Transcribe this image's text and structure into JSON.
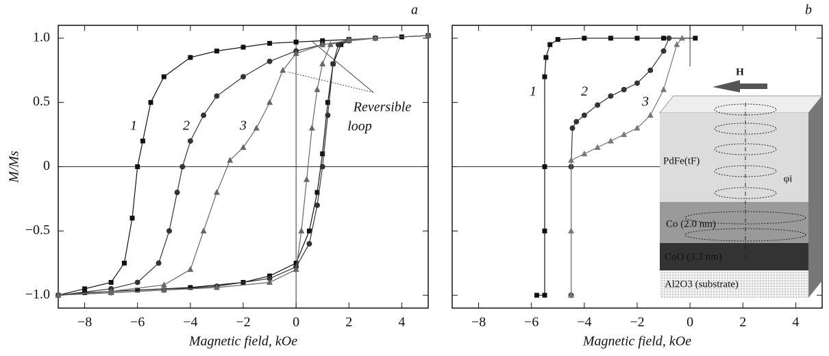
{
  "chart_data": [
    {
      "type": "line",
      "panel_label": "a",
      "x_label": "Magnetic field, kOe",
      "y_label": "M/Ms",
      "xlim": [
        -9,
        5
      ],
      "ylim": [
        -1.1,
        1.1
      ],
      "xticks": [
        {
          "value": -8,
          "label": "−8"
        },
        {
          "value": -6,
          "label": "−6"
        },
        {
          "value": -4,
          "label": "−4"
        },
        {
          "value": -2,
          "label": "−2"
        },
        0,
        2,
        4
      ],
      "yticks": [
        {
          "value": -1,
          "label": "−1.0"
        },
        {
          "value": -0.5,
          "label": "−0.5"
        },
        0,
        0.5,
        {
          "value": 1,
          "label": "1.0"
        }
      ],
      "zero_lines": true,
      "curve_labels": [
        "1",
        "2",
        "3"
      ],
      "annotation": [
        "Reversible",
        "loop"
      ],
      "series": [
        {
          "name": "1",
          "color": "#111111",
          "marker": "square",
          "x": [
            5,
            4,
            3,
            2,
            1,
            0,
            -1,
            -2,
            -3,
            -4,
            -5,
            -5.5,
            -5.8,
            -6,
            -6.2,
            -6.5,
            -7,
            -8,
            -9,
            -8,
            -6,
            -4,
            -2,
            -1,
            0,
            0.5,
            0.8,
            1,
            1.2,
            1.4,
            1.7,
            2,
            3,
            5
          ],
          "y": [
            1.02,
            1.01,
            1.0,
            0.99,
            0.98,
            0.97,
            0.96,
            0.93,
            0.9,
            0.85,
            0.7,
            0.5,
            0.2,
            0,
            -0.4,
            -0.75,
            -0.9,
            -0.95,
            -1.0,
            -0.98,
            -0.96,
            -0.94,
            -0.9,
            -0.85,
            -0.75,
            -0.5,
            -0.2,
            0.1,
            0.5,
            0.8,
            0.95,
            0.98,
            1.0,
            1.02
          ]
        },
        {
          "name": "2",
          "color": "#333333",
          "marker": "circle",
          "x": [
            5,
            3,
            2,
            1,
            0,
            -1,
            -2,
            -3,
            -3.5,
            -4,
            -4.3,
            -4.5,
            -4.8,
            -5.2,
            -6,
            -7,
            -9,
            -7,
            -5,
            -3,
            -1,
            0,
            0.5,
            0.8,
            1.0,
            1.2,
            1.4,
            1.6,
            2,
            3,
            5
          ],
          "y": [
            1.02,
            1.0,
            0.98,
            0.95,
            0.9,
            0.82,
            0.7,
            0.55,
            0.4,
            0.2,
            0,
            -0.2,
            -0.5,
            -0.75,
            -0.9,
            -0.95,
            -1.0,
            -0.98,
            -0.96,
            -0.93,
            -0.87,
            -0.78,
            -0.6,
            -0.3,
            0,
            0.4,
            0.8,
            0.95,
            0.98,
            1.0,
            1.02
          ]
        },
        {
          "name": "3",
          "color": "#666666",
          "marker": "triangle",
          "x": [
            5,
            3,
            2,
            1,
            0,
            -0.5,
            -1,
            -1.5,
            -2,
            -2.5,
            -3,
            -3.5,
            -4,
            -5,
            -7,
            -9,
            -7,
            -5,
            -3,
            -1,
            0,
            0.2,
            0.4,
            0.6,
            0.8,
            1,
            1.3,
            2,
            3,
            5
          ],
          "y": [
            1.02,
            1.0,
            0.98,
            0.95,
            0.88,
            0.75,
            0.5,
            0.3,
            0.15,
            0.05,
            -0.2,
            -0.5,
            -0.8,
            -0.92,
            -0.97,
            -1.0,
            -0.98,
            -0.96,
            -0.94,
            -0.9,
            -0.8,
            -0.5,
            -0.1,
            0.3,
            0.6,
            0.8,
            0.95,
            0.99,
            1.0,
            1.02
          ]
        }
      ]
    },
    {
      "type": "line",
      "panel_label": "b",
      "x_label": "Magnetic field, kOe",
      "xlim": [
        -9,
        5
      ],
      "ylim": [
        -1.1,
        1.1
      ],
      "xticks": [
        {
          "value": -8,
          "label": "−8"
        },
        {
          "value": -6,
          "label": "−6"
        },
        {
          "value": -4,
          "label": "−4"
        },
        {
          "value": -2,
          "label": "−2"
        },
        0,
        2,
        4
      ],
      "yticks": [
        -1,
        -0.5,
        0,
        0.5,
        1
      ],
      "zero_lines": true,
      "curve_labels": [
        "1",
        "2",
        "3"
      ],
      "series": [
        {
          "name": "1",
          "color": "#111111",
          "marker": "square",
          "x": [
            0.2,
            -1,
            -2,
            -3,
            -4,
            -5,
            -5.3,
            -5.45,
            -5.5,
            -5.5,
            -5.5,
            -5.5,
            -5.8
          ],
          "y": [
            1.0,
            1.0,
            1.0,
            1.0,
            1.0,
            0.99,
            0.95,
            0.85,
            0.7,
            0,
            -0.5,
            -1.0,
            -1.0
          ]
        },
        {
          "name": "2",
          "color": "#333333",
          "marker": "circle",
          "x": [
            -0.8,
            -1,
            -1.5,
            -2,
            -2.5,
            -3,
            -3.5,
            -4,
            -4.3,
            -4.45,
            -4.5,
            -4.5
          ],
          "y": [
            1.0,
            0.9,
            0.75,
            0.65,
            0.6,
            0.55,
            0.48,
            0.4,
            0.35,
            0.3,
            0,
            -1.0
          ]
        },
        {
          "name": "3",
          "color": "#777777",
          "marker": "triangle",
          "x": [
            -0.3,
            -0.5,
            -1,
            -1.5,
            -2,
            -2.5,
            -3,
            -3.5,
            -4,
            -4.5,
            -4.5,
            -4.5
          ],
          "y": [
            1.0,
            0.95,
            0.6,
            0.4,
            0.3,
            0.25,
            0.2,
            0.15,
            0.1,
            0.05,
            -0.5,
            -1.0
          ]
        }
      ],
      "inset": {
        "field": "H",
        "angle": "φi",
        "layers": [
          "PdFe(tF)",
          "Co (2.0 nm)",
          "CoO (3.3 nm)",
          "Al2O3 (substrate)"
        ]
      }
    }
  ]
}
